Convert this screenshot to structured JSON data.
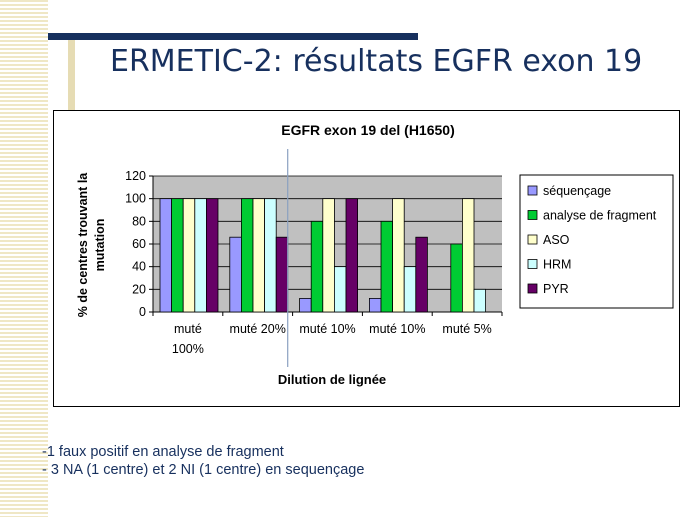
{
  "slide": {
    "title": "ERMETIC-2: résultats EGFR exon 19"
  },
  "notes": [
    "-1 faux positif en analyse de fragment",
    "- 3 NA (1 centre) et 2 NI (1 centre) en sequençage"
  ],
  "colors": {
    "title": "#17305e",
    "plot_bg": "#c0c0c0",
    "divider": "#8aa0c0"
  },
  "chart_data": {
    "type": "bar",
    "title": "EGFR exon 19 del (H1650)",
    "xlabel": "Dilution de lignée",
    "ylabel": "% de centres trouvant la mutation",
    "ylim": [
      0,
      120
    ],
    "yticks": [
      0,
      20,
      40,
      60,
      80,
      100,
      120
    ],
    "grid": true,
    "legend_position": "right",
    "categories": [
      [
        "muté",
        "100%"
      ],
      [
        "muté 20%"
      ],
      [
        "muté 10%"
      ],
      [
        "muté 10%"
      ],
      [
        "muté 5%"
      ]
    ],
    "series": [
      {
        "name": "séquençage",
        "color": "#9999ff",
        "values": [
          100,
          66,
          12,
          12,
          null
        ]
      },
      {
        "name": "analyse de fragment",
        "color": "#00cc33",
        "values": [
          100,
          100,
          80,
          80,
          60
        ]
      },
      {
        "name": "ASO",
        "color": "#ffffcc",
        "values": [
          100,
          100,
          100,
          100,
          100
        ]
      },
      {
        "name": "HRM",
        "color": "#ccffff",
        "values": [
          100,
          100,
          40,
          40,
          20
        ]
      },
      {
        "name": "PYR",
        "color": "#660066",
        "values": [
          100,
          66,
          100,
          66,
          null
        ]
      }
    ]
  }
}
